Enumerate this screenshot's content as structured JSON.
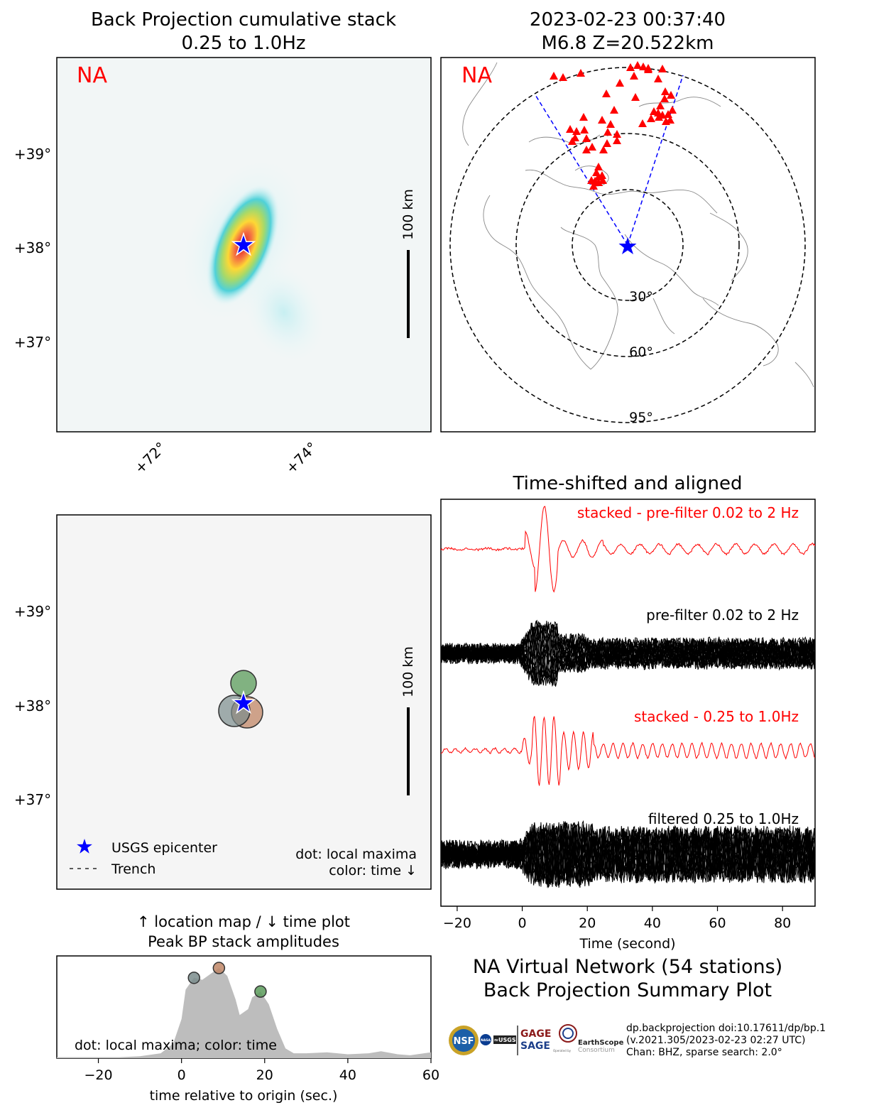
{
  "bp_panel": {
    "title_line1": "Back Projection cumulative stack",
    "title_line2": "0.25 to 1.0Hz",
    "network_label": "NA",
    "lat_ticks": [
      "+39°",
      "+38°",
      "+37°"
    ],
    "lon_ticks": [
      "+72°",
      "+74°"
    ],
    "scalebar_label": "100 km"
  },
  "station_map": {
    "title_line1": "2023-02-23 00:37:40",
    "title_line2": "M6.8 Z=20.522km",
    "network_label": "NA",
    "ring_labels": [
      "30°",
      "60°",
      "95°"
    ],
    "station_color": "#ff0000",
    "epicenter_color": "#0000ff"
  },
  "locmax_panel": {
    "lat_ticks": [
      "+39°",
      "+38°",
      "+37°"
    ],
    "scalebar_label": "100 km",
    "legend_epicenter": "USGS epicenter",
    "legend_trench": "Trench",
    "note_line1": "dot: local maxima",
    "note_line2": "color: time ↓"
  },
  "waveform_panel": {
    "title": "Time-shifted and aligned",
    "label_stacked_prefilter": "stacked - pre-filter 0.02 to 2 Hz",
    "label_prefilter": "pre-filter 0.02 to 2 Hz",
    "label_stacked_filtered": "stacked - 0.25 to 1.0Hz",
    "label_filtered": "filtered 0.25 to 1.0Hz",
    "xlabel": "Time (second)",
    "x_ticks": [
      "−20",
      "0",
      "20",
      "40",
      "60",
      "80"
    ]
  },
  "peak_panel": {
    "title_line1": "↑ location map / ↓ time plot",
    "title_line2": "Peak BP stack amplitudes",
    "note": "dot: local maxima; color: time",
    "xlabel": "time relative to origin (sec.)",
    "x_ticks": [
      "−20",
      "0",
      "20",
      "40",
      "60"
    ]
  },
  "summary": {
    "line1": "NA Virtual Network (54 stations)",
    "line2": "Back Projection Summary Plot"
  },
  "footer": {
    "line1": "dp.backprojection doi:10.17611/dp/bp.1",
    "line2": "(v.2021.305/2023-02-23 02:27 UTC)",
    "line3": "Chan: BHZ, sparse search: 2.0°"
  },
  "logos": {
    "nsf": "NSF",
    "nasa": "NASA",
    "usgs": "≈USGS",
    "gage": "GAGE",
    "sage": "SAGE",
    "earthscope": "EarthScope",
    "consortium": "Consortium",
    "operated_by": "Operated by"
  },
  "chart_data": [
    {
      "type": "heatmap",
      "title": "Back Projection cumulative stack",
      "subtitle": "0.25 to 1.0Hz",
      "y_ticks": [
        "+39°",
        "+38°",
        "+37°"
      ],
      "x_ticks": [
        "+72°",
        "+74°"
      ],
      "peak": {
        "lon": 73.2,
        "lat": 38.05
      },
      "epicenter": {
        "lon": 73.2,
        "lat": 38.03
      }
    },
    {
      "type": "scatter",
      "title": "Local maxima locations",
      "points": [
        {
          "lon": 73.2,
          "lat": 38.25,
          "time_s": 19,
          "color": "#5a9b5a"
        },
        {
          "lon": 73.0,
          "lat": 37.95,
          "time_s": 3,
          "color": "#7a8c8c"
        },
        {
          "lon": 73.3,
          "lat": 37.93,
          "time_s": 9,
          "color": "#c08666"
        }
      ],
      "epicenter": {
        "lon": 73.2,
        "lat": 38.03
      }
    },
    {
      "type": "line",
      "title": "Time-shifted and aligned",
      "xlabel": "Time (second)",
      "xlim": [
        -25,
        90
      ],
      "series": [
        {
          "name": "stacked - pre-filter 0.02 to 2 Hz",
          "color": "#ff0000"
        },
        {
          "name": "pre-filter 0.02 to 2 Hz",
          "color": "#000000"
        },
        {
          "name": "stacked - 0.25 to 1.0Hz",
          "color": "#ff0000"
        },
        {
          "name": "filtered 0.25 to 1.0Hz",
          "color": "#000000"
        }
      ]
    },
    {
      "type": "area",
      "title": "Peak BP stack amplitudes",
      "xlabel": "time relative to origin (sec.)",
      "xlim": [
        -30,
        60
      ],
      "x": [
        -30,
        -15,
        -10,
        -5,
        -2,
        0,
        1,
        3,
        5,
        7,
        9,
        11,
        13,
        14,
        16,
        17,
        19,
        21,
        23,
        25,
        27,
        30,
        35,
        40,
        45,
        48,
        52,
        55,
        60
      ],
      "y": [
        0.01,
        0.01,
        0.02,
        0.05,
        0.15,
        0.4,
        0.7,
        0.82,
        0.8,
        0.86,
        0.92,
        0.84,
        0.6,
        0.44,
        0.5,
        0.62,
        0.68,
        0.55,
        0.3,
        0.1,
        0.05,
        0.05,
        0.06,
        0.04,
        0.05,
        0.07,
        0.04,
        0.03,
        0.06
      ],
      "maxima": [
        {
          "t": 3,
          "amp": 0.82,
          "color": "#7a8c8c"
        },
        {
          "t": 9,
          "amp": 0.92,
          "color": "#c08666"
        },
        {
          "t": 19,
          "amp": 0.68,
          "color": "#5a9b5a"
        }
      ]
    }
  ]
}
